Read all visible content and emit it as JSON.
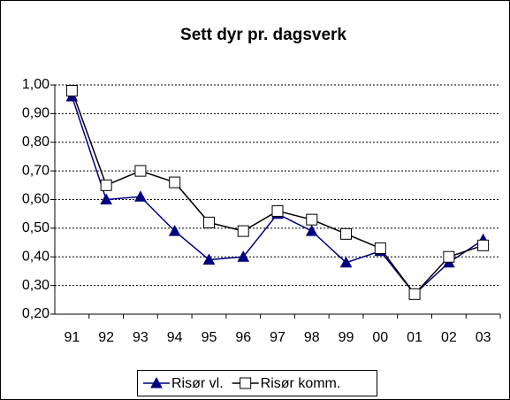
{
  "chart_data": {
    "type": "line",
    "title": "Sett dyr pr. dagsverk",
    "categories": [
      "91",
      "92",
      "93",
      "94",
      "95",
      "96",
      "97",
      "98",
      "99",
      "00",
      "01",
      "02",
      "03"
    ],
    "series": [
      {
        "name": "Risør vl.",
        "color": "#000080",
        "marker": "triangle",
        "values": [
          0.96,
          0.6,
          0.61,
          0.49,
          0.39,
          0.4,
          0.55,
          0.49,
          0.38,
          0.42,
          0.27,
          0.38,
          0.46
        ]
      },
      {
        "name": "Risør komm.",
        "color": "#000000",
        "marker": "square",
        "values": [
          0.98,
          0.65,
          0.7,
          0.66,
          0.52,
          0.49,
          0.56,
          0.53,
          0.48,
          0.43,
          0.27,
          0.4,
          0.44
        ]
      }
    ],
    "ylim": [
      0.2,
      1.0
    ],
    "yticks": [
      {
        "value": 0.2,
        "label": "0,20"
      },
      {
        "value": 0.3,
        "label": "0,30"
      },
      {
        "value": 0.4,
        "label": "0,40"
      },
      {
        "value": 0.5,
        "label": "0,50"
      },
      {
        "value": 0.6,
        "label": "0,60"
      },
      {
        "value": 0.7,
        "label": "0,70"
      },
      {
        "value": 0.8,
        "label": "0,80"
      },
      {
        "value": 0.9,
        "label": "0,90"
      },
      {
        "value": 1.0,
        "label": "1,00"
      }
    ],
    "grid": true,
    "legend": "bottom"
  }
}
